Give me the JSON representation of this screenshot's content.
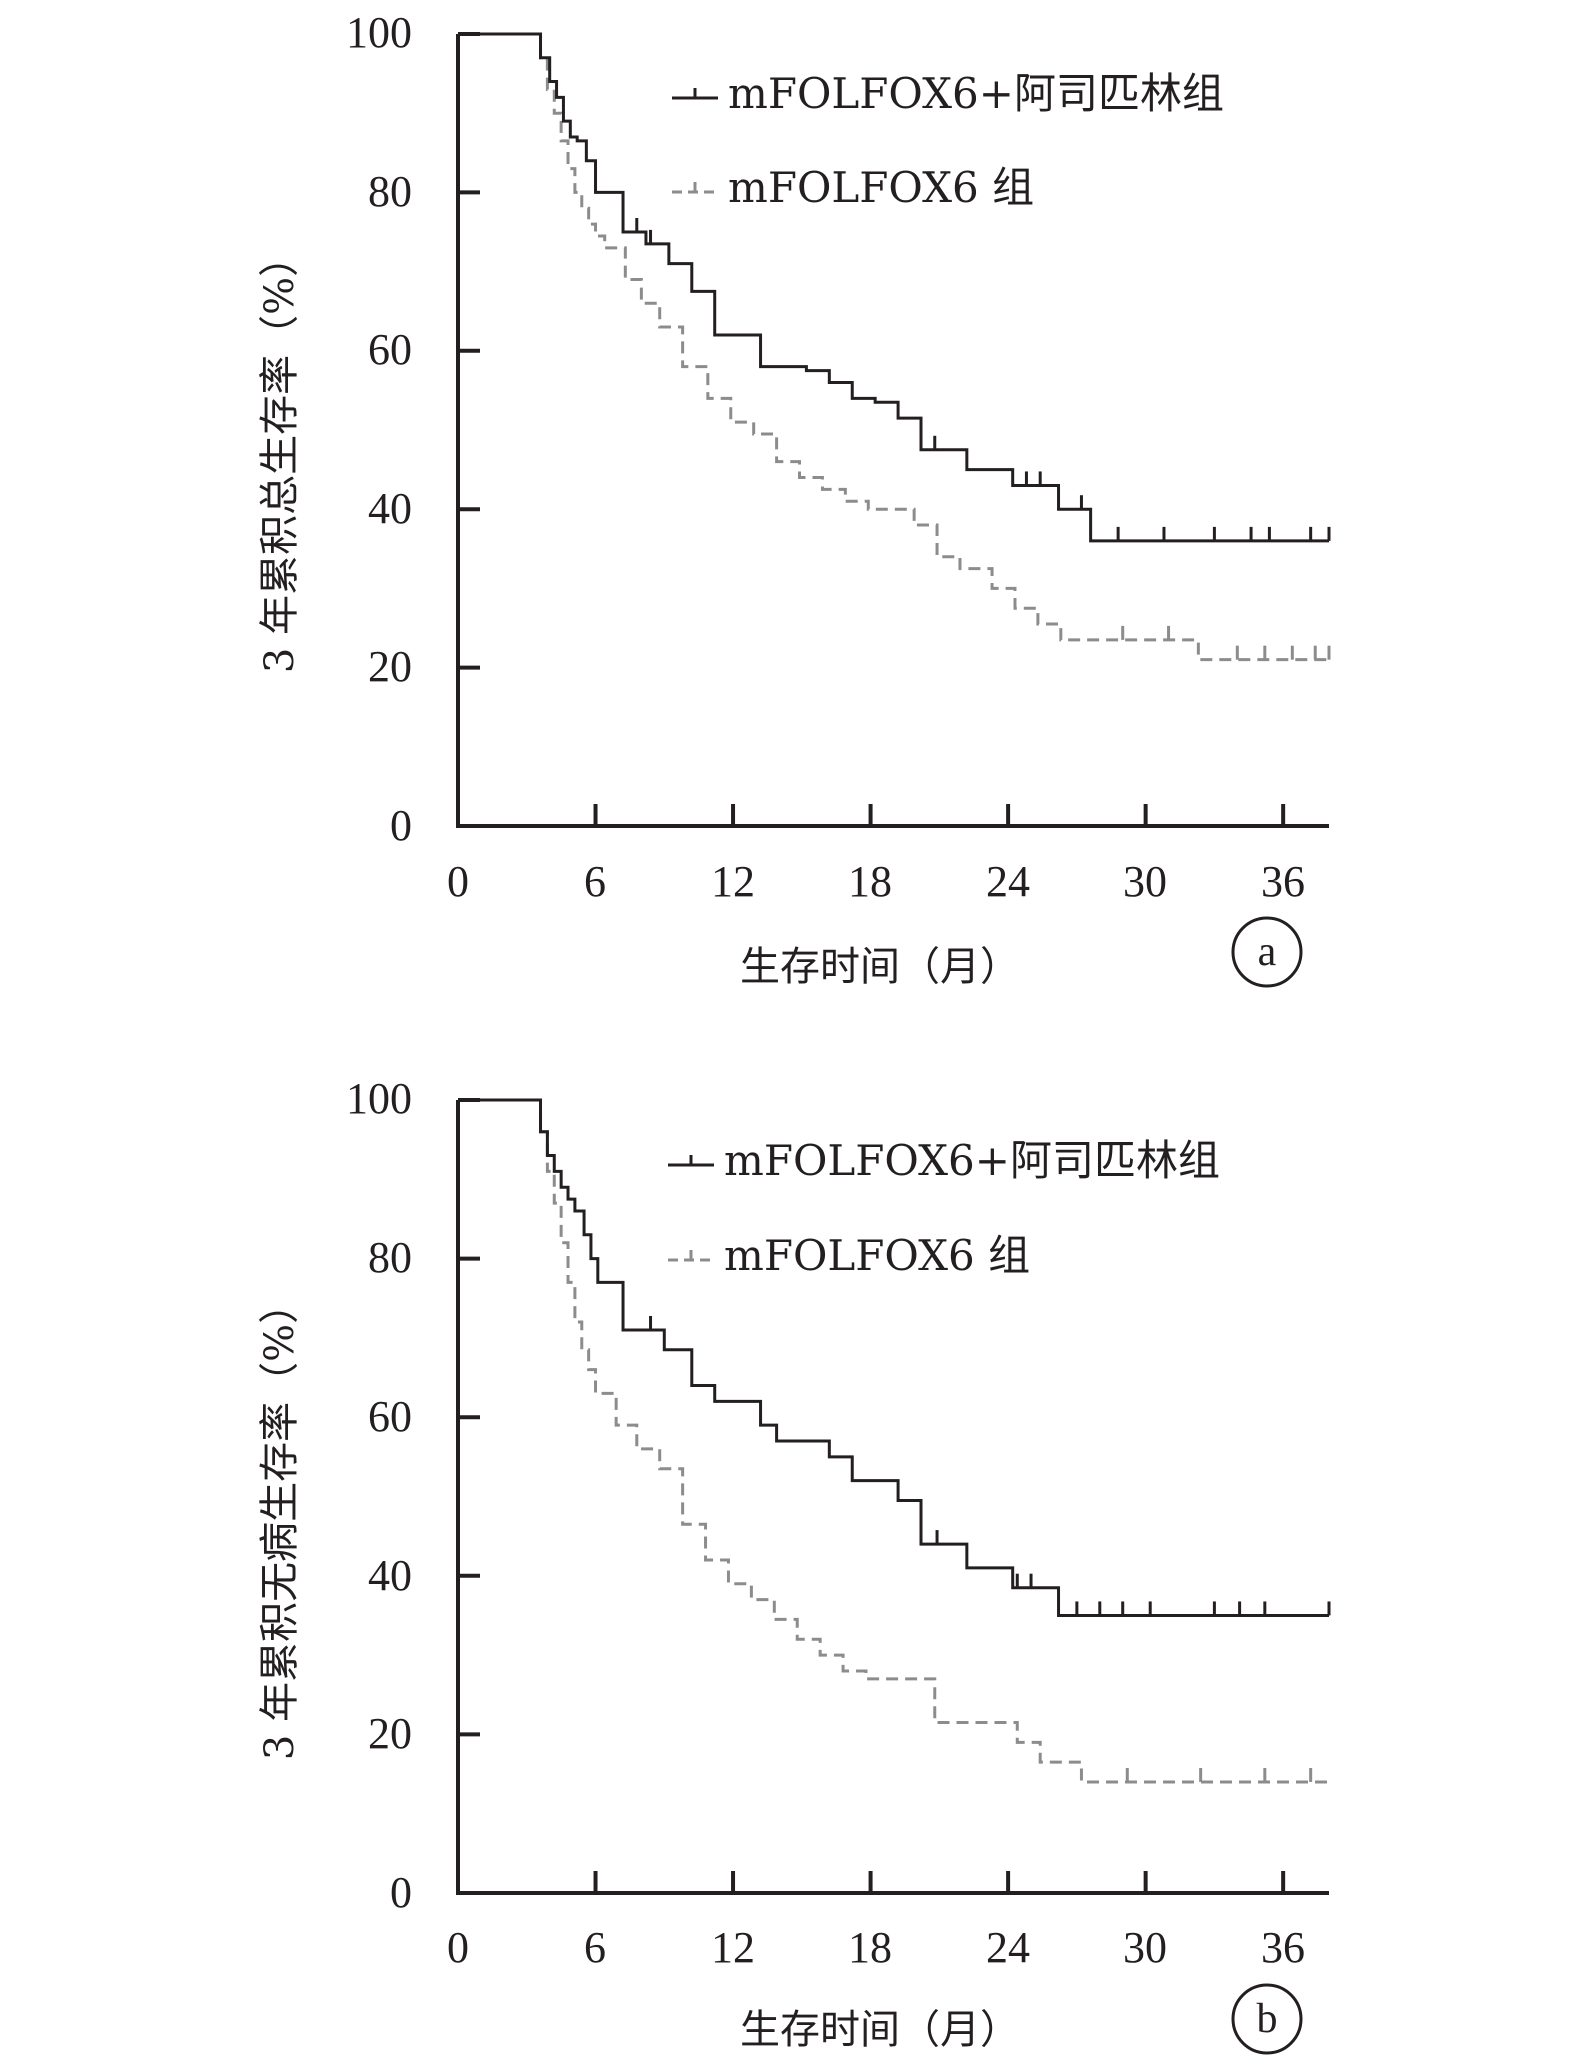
{
  "colors": {
    "treatment": "#231f20",
    "control": "#8c8c8c",
    "axis": "#231f20"
  },
  "chart_data": [
    {
      "type": "line",
      "panel_label": "a",
      "ylabel": "3 年累积总生存率（%）",
      "xlabel": "生存时间（月）",
      "xlim": [
        0,
        38
      ],
      "ylim": [
        0,
        100
      ],
      "xticks": [
        0,
        6,
        12,
        18,
        24,
        30,
        36
      ],
      "yticks": [
        0,
        20,
        40,
        60,
        80,
        100
      ],
      "grid": false,
      "legend_position": "top-right",
      "series": [
        {
          "name": "mFOLFOX6+阿司匹林组",
          "style": "solid",
          "color": "#231f20",
          "x": [
            0,
            3.4,
            3.6,
            4.0,
            4.3,
            4.6,
            4.9,
            5.2,
            5.6,
            6.0,
            7.2,
            8.2,
            9.2,
            10.2,
            11.2,
            13.2,
            15.2,
            16.2,
            17.2,
            18.2,
            19.2,
            20.2,
            22.2,
            24.2,
            26.2,
            27.6,
            38
          ],
          "y": [
            100,
            100,
            97,
            94,
            92,
            89,
            87,
            86.5,
            84,
            80,
            75,
            73.5,
            71,
            67.5,
            62,
            58,
            57.5,
            56,
            54,
            53.5,
            51.5,
            47.5,
            45,
            43,
            40,
            36,
            36
          ],
          "censored_x": [
            7.8,
            8.4,
            20.8,
            24.8,
            25.4,
            27.2,
            28.8,
            30.8,
            33.0,
            34.6,
            35.4,
            37.2,
            38
          ]
        },
        {
          "name": "mFOLFOX6 组",
          "style": "dashed",
          "color": "#8c8c8c",
          "x": [
            0,
            3.4,
            3.6,
            3.9,
            4.2,
            4.5,
            4.8,
            5.1,
            5.4,
            5.7,
            6.0,
            6.4,
            7.3,
            8.0,
            8.8,
            9.8,
            10.9,
            11.9,
            12.9,
            13.9,
            14.9,
            15.9,
            16.9,
            17.9,
            19.9,
            20.9,
            21.9,
            23.3,
            24.3,
            25.3,
            26.3,
            32.3,
            38
          ],
          "y": [
            100,
            100,
            97,
            93,
            90,
            86.5,
            83,
            80,
            78,
            76,
            74.5,
            73,
            69,
            66,
            63,
            58,
            54,
            51,
            49.5,
            46,
            44,
            42.5,
            41,
            40,
            38,
            34,
            32.5,
            30,
            27.5,
            25.5,
            23.5,
            21,
            21
          ],
          "censored_x": [
            29.0,
            31.0,
            34.0,
            35.2,
            36.4,
            37.4,
            38
          ]
        }
      ]
    },
    {
      "type": "line",
      "panel_label": "b",
      "ylabel": "3 年累积无病生存率（%）",
      "xlabel": "生存时间（月）",
      "xlim": [
        0,
        38
      ],
      "ylim": [
        0,
        100
      ],
      "xticks": [
        0,
        6,
        12,
        18,
        24,
        30,
        36
      ],
      "yticks": [
        0,
        20,
        40,
        60,
        80,
        100
      ],
      "grid": false,
      "legend_position": "top-right",
      "series": [
        {
          "name": "mFOLFOX6+阿司匹林组",
          "style": "solid",
          "color": "#231f20",
          "x": [
            0,
            3.4,
            3.6,
            3.9,
            4.2,
            4.5,
            4.8,
            5.1,
            5.5,
            5.8,
            6.1,
            7.2,
            9.0,
            10.2,
            11.2,
            13.2,
            13.9,
            16.2,
            17.2,
            19.2,
            20.2,
            22.2,
            24.2,
            26.2,
            38
          ],
          "y": [
            100,
            100,
            96,
            93,
            91,
            89,
            87.5,
            86,
            83,
            80,
            77,
            71,
            68.5,
            64,
            62,
            59,
            57,
            55,
            52,
            49.5,
            44,
            41,
            38.5,
            35,
            35
          ],
          "censored_x": [
            8.4,
            20.9,
            24.4,
            25.0,
            27.0,
            28.0,
            29.0,
            30.2,
            33.0,
            34.1,
            35.2,
            38
          ]
        },
        {
          "name": "mFOLFOX6 组",
          "style": "dashed",
          "color": "#8c8c8c",
          "x": [
            0,
            3.4,
            3.6,
            3.9,
            4.2,
            4.5,
            4.8,
            5.1,
            5.4,
            5.7,
            6.0,
            6.9,
            7.8,
            8.8,
            9.8,
            10.8,
            11.8,
            12.8,
            13.8,
            14.8,
            15.8,
            16.8,
            17.8,
            20.8,
            21.8,
            24.4,
            25.4,
            27.2,
            38
          ],
          "y": [
            100,
            100,
            96,
            91,
            87,
            82,
            77,
            72,
            68.5,
            66,
            63,
            59,
            56,
            53.5,
            46.5,
            42,
            39,
            37,
            34.5,
            32,
            30,
            28,
            27,
            21.5,
            21.5,
            19,
            16.5,
            14,
            14
          ],
          "censored_x": [
            29.2,
            32.4,
            35.2,
            37.2
          ]
        }
      ]
    }
  ],
  "panels": [
    {
      "y_ticks": [
        "0",
        "20",
        "40",
        "60",
        "80",
        "100"
      ],
      "x_ticks": [
        "0",
        "6",
        "12",
        "18",
        "24",
        "30",
        "36"
      ],
      "ylabel": "3 年累积总生存率（%）",
      "xlabel": "生存时间（月）",
      "legend": [
        "mFOLFOX6+阿司匹林组",
        "mFOLFOX6 组"
      ],
      "panel_label": "a"
    },
    {
      "y_ticks": [
        "0",
        "20",
        "40",
        "60",
        "80",
        "100"
      ],
      "x_ticks": [
        "0",
        "6",
        "12",
        "18",
        "24",
        "30",
        "36"
      ],
      "ylabel": "3 年累积无病生存率（%）",
      "xlabel": "生存时间（月）",
      "legend": [
        "mFOLFOX6+阿司匹林组",
        "mFOLFOX6 组"
      ],
      "panel_label": "b"
    }
  ]
}
